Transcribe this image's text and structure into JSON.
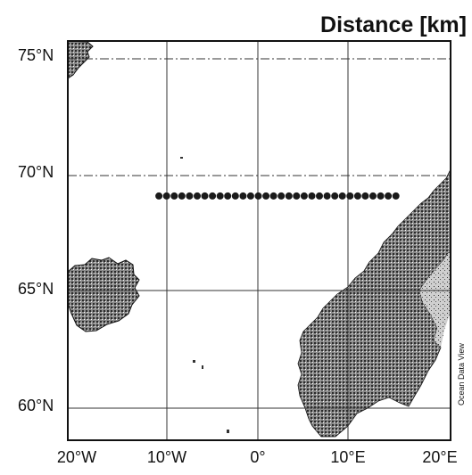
{
  "map": {
    "title": "Distance [km]",
    "credit": "Ocean Data View",
    "lat_labels": [
      "75°N",
      "70°N",
      "65°N",
      "60°N"
    ],
    "lon_labels": [
      "20°W",
      "10°W",
      "0°",
      "10°E",
      "20°E"
    ],
    "extent": {
      "lon_min": -21,
      "lon_max": 21,
      "lat_min": 59,
      "lat_max": 76
    },
    "station_line": {
      "latitude": 69.4,
      "lon_start": -11,
      "lon_end": 15,
      "station_count": 32
    },
    "colors": {
      "land": "#5a5a5a",
      "frame": "#111111",
      "stations": "#1a1a1a",
      "grid": "#333333"
    }
  }
}
